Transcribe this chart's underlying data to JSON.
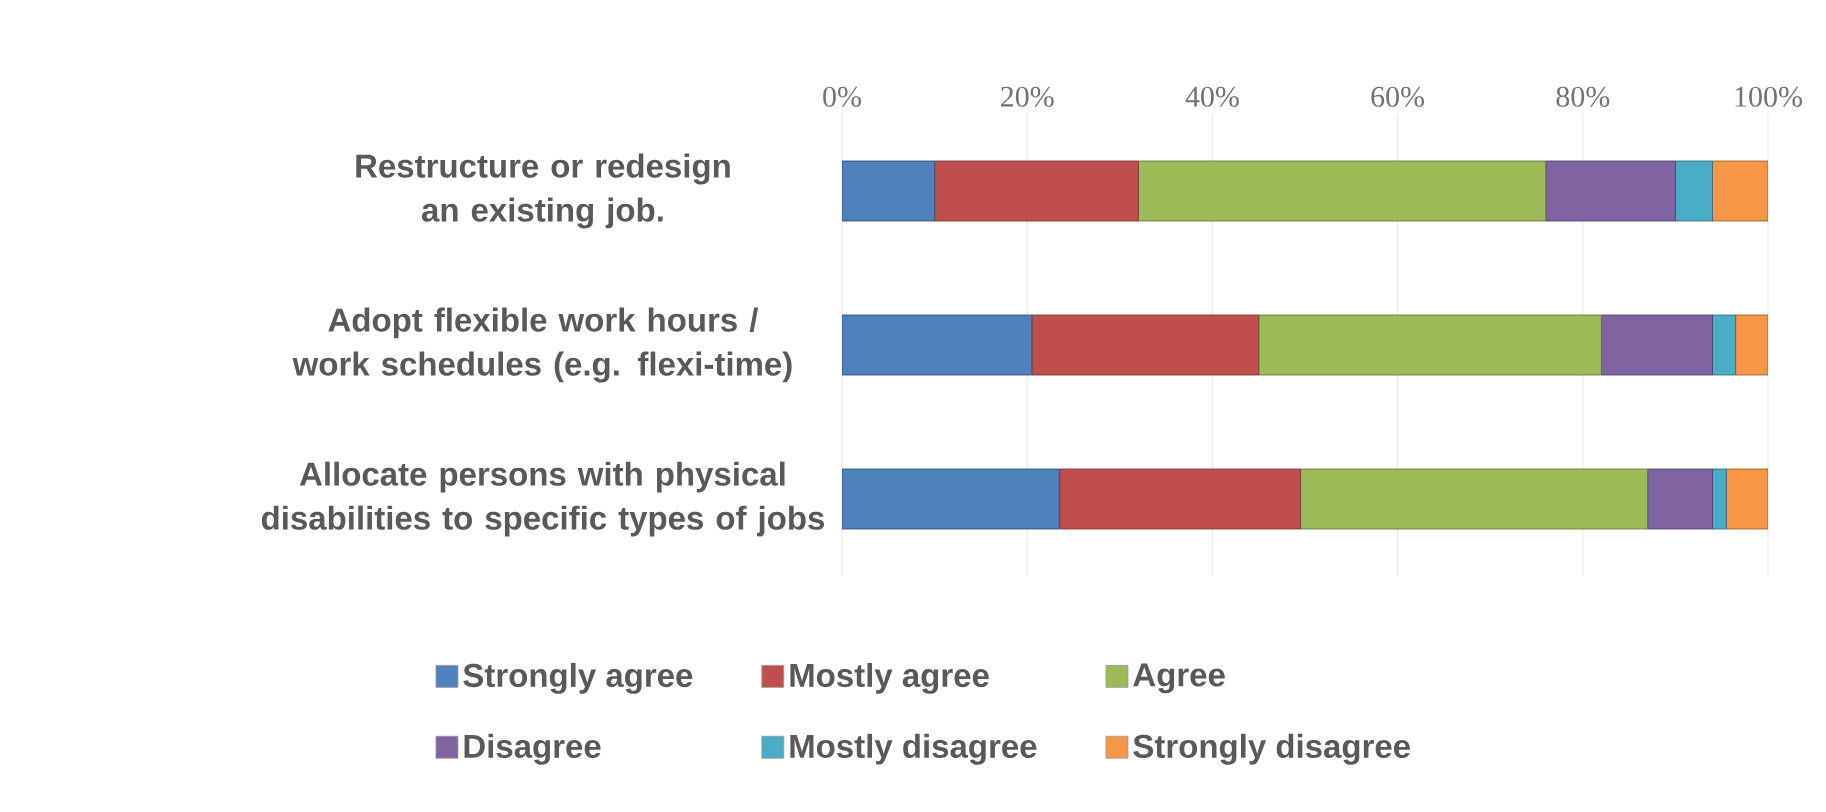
{
  "chart_data": {
    "type": "bar",
    "orientation": "horizontal",
    "stacked": true,
    "categories": [
      "Restructure or redesign an existing job.",
      "Adopt flexible work hours / work schedules (e.g. flexi-time)",
      "Allocate persons with physical disabilities to specific types of jobs"
    ],
    "series": [
      {
        "name": "Strongly agree",
        "color": "#4f81bd",
        "values": [
          10,
          20.5,
          23.5
        ]
      },
      {
        "name": "Mostly agree",
        "color": "#c0504d",
        "values": [
          22,
          24.5,
          26
        ]
      },
      {
        "name": "Agree",
        "color": "#9bbb59",
        "values": [
          44,
          37,
          37.5
        ]
      },
      {
        "name": "Disagree",
        "color": "#8064a2",
        "values": [
          14,
          12,
          7
        ]
      },
      {
        "name": "Mostly disagree",
        "color": "#4bacc6",
        "values": [
          4,
          2.5,
          1.5
        ]
      },
      {
        "name": "Strongly disagree",
        "color": "#f79646",
        "values": [
          6,
          3.5,
          4.5
        ]
      }
    ],
    "xlim": [
      0,
      100
    ],
    "xticks": [
      {
        "value": 0,
        "label": "0%"
      },
      {
        "value": 20,
        "label": "20%"
      },
      {
        "value": 40,
        "label": "40%"
      },
      {
        "value": 60,
        "label": "60%"
      },
      {
        "value": 80,
        "label": "80%"
      },
      {
        "value": 100,
        "label": "100%"
      }
    ],
    "grid": "x",
    "legend": "bottom"
  }
}
